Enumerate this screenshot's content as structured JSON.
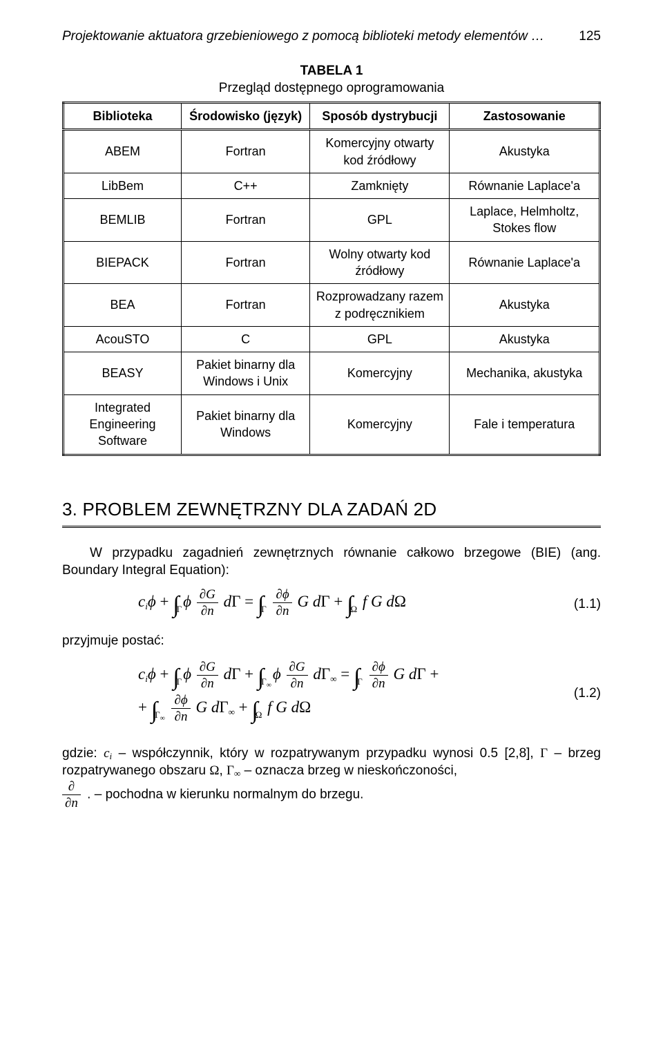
{
  "page": {
    "running_title": "Projektowanie aktuatora grzebieniowego z pomocą biblioteki metody elementów …",
    "page_number": "125"
  },
  "table": {
    "label": "TABELA 1",
    "title": "Przegląd dostępnego oprogramowania",
    "columns": [
      "Biblioteka",
      "Środowisko (język)",
      "Sposób dystrybucji",
      "Zastosowanie"
    ],
    "rows": [
      [
        "ABEM",
        "Fortran",
        "Komercyjny otwarty kod źródłowy",
        "Akustyka"
      ],
      [
        "LibBem",
        "C++",
        "Zamknięty",
        "Równanie Laplace'a"
      ],
      [
        "BEMLIB",
        "Fortran",
        "GPL",
        "Laplace, Helmholtz, Stokes flow"
      ],
      [
        "BIEPACK",
        "Fortran",
        "Wolny otwarty kod źródłowy",
        "Równanie Laplace'a"
      ],
      [
        "BEA",
        "Fortran",
        "Rozprowadzany razem z podręcznikiem",
        "Akustyka"
      ],
      [
        "AcouSTO",
        "C",
        "GPL",
        "Akustyka"
      ],
      [
        "BEASY",
        "Pakiet binarny dla Windows i Unix",
        "Komercyjny",
        "Mechanika, akustyka"
      ],
      [
        "Integrated Engineering Software",
        "Pakiet binarny dla Windows",
        "Komercyjny",
        "Fale i temperatura"
      ]
    ]
  },
  "section": {
    "heading": "3. PROBLEM ZEWNĘTRZNY DLA ZADAŃ 2D",
    "intro": "W przypadku zagadnień zewnętrznych równanie całkowo brzegowe (BIE) (ang. Boundary Integral Equation):",
    "takes_form": "przyjmuje postać:",
    "eq1_num": "(1.1)",
    "eq2_num": "(1.2)",
    "where_prefix": "gdzie: ",
    "where_ci": " – współczynnik, który w rozpatrywanym przypadku wynosi 0.5 [2,8], ",
    "where_gamma": " – brzeg rozpatrywanego obszaru ",
    "where_gammainf": " – oznacza brzeg w nieskończoności, ",
    "where_ddn": " – pochodna w kierunku normalnym do brzegu."
  }
}
